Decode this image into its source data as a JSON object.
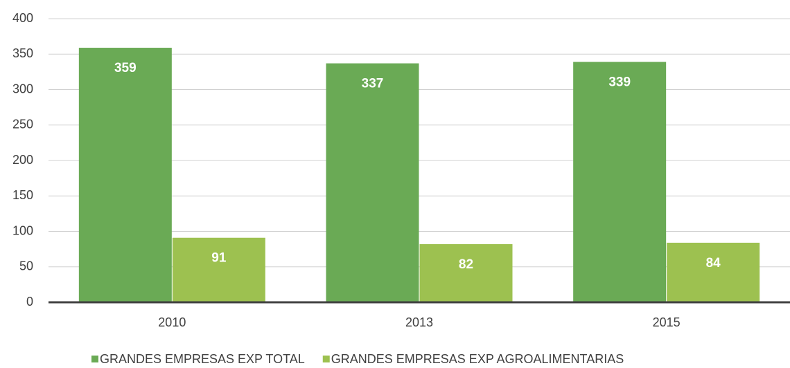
{
  "chart_data": {
    "type": "bar",
    "categories": [
      "2010",
      "2013",
      "2015"
    ],
    "series": [
      {
        "name": "GRANDES EMPRESAS EXP TOTAL",
        "color": "#6aaa55",
        "values": [
          359,
          337,
          339
        ]
      },
      {
        "name": "GRANDES EMPRESAS EXP AGROALIMENTARIAS",
        "color": "#9dc150",
        "values": [
          91,
          82,
          84
        ]
      }
    ],
    "ylim": [
      0,
      400
    ],
    "yticks": [
      0,
      50,
      100,
      150,
      200,
      250,
      300,
      350,
      400
    ],
    "grid": true,
    "legend": "bottom"
  }
}
